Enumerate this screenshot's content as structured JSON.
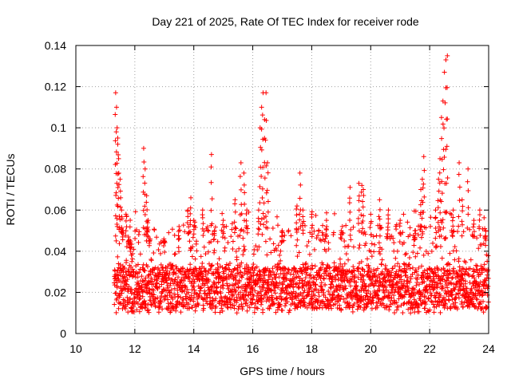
{
  "chart_data": {
    "type": "scatter",
    "title": "Day 221 of 2025, Rate Of TEC Index for receiver rode",
    "xlabel": "GPS time / hours",
    "ylabel": "ROTI / TECUs",
    "xlim": [
      10,
      24
    ],
    "ylim": [
      0,
      0.14
    ],
    "xticks": [
      10,
      12,
      14,
      16,
      18,
      20,
      22,
      24
    ],
    "yticks": [
      0,
      0.02,
      0.04,
      0.06,
      0.08,
      0.1,
      0.12,
      0.14
    ],
    "xtick_labels": [
      "10",
      "12",
      "14",
      "16",
      "18",
      "20",
      "22",
      "24"
    ],
    "ytick_labels": [
      "0",
      "0.02",
      "0.04",
      "0.06",
      "0.08",
      "0.1",
      "0.12",
      "0.14"
    ],
    "grid": true,
    "marker": "+",
    "series_color": "#ff0000",
    "series": [
      {
        "name": "ROTI",
        "x": [
          11.35,
          11.38,
          11.4,
          11.42,
          11.45,
          11.5,
          11.55,
          11.6,
          11.7,
          11.8,
          11.85,
          11.9,
          12.3,
          12.35,
          12.4,
          12.45,
          12.5,
          13.0,
          13.5,
          13.8,
          13.9,
          14.0,
          14.3,
          14.6,
          14.7,
          15.0,
          15.4,
          15.6,
          15.7,
          15.8,
          16.2,
          16.25,
          16.3,
          16.35,
          16.4,
          16.45,
          16.5,
          17.0,
          17.5,
          17.6,
          17.7,
          18.0,
          18.5,
          19.0,
          19.3,
          19.6,
          19.7,
          19.75,
          20.0,
          20.3,
          20.6,
          21.0,
          21.5,
          21.7,
          21.75,
          21.8,
          22.2,
          22.3,
          22.35,
          22.4,
          22.45,
          22.5,
          22.55,
          22.6,
          22.8,
          23.0,
          23.1,
          23.3,
          23.5,
          23.7,
          23.9
        ],
        "y": [
          0.117,
          0.11,
          0.1,
          0.095,
          0.085,
          0.075,
          0.06,
          0.05,
          0.058,
          0.045,
          0.04,
          0.035,
          0.09,
          0.08,
          0.067,
          0.055,
          0.045,
          0.045,
          0.052,
          0.06,
          0.066,
          0.055,
          0.06,
          0.087,
          0.05,
          0.055,
          0.065,
          0.083,
          0.078,
          0.06,
          0.06,
          0.1,
          0.11,
          0.117,
          0.104,
          0.117,
          0.083,
          0.05,
          0.062,
          0.078,
          0.06,
          0.058,
          0.055,
          0.05,
          0.071,
          0.073,
          0.072,
          0.07,
          0.058,
          0.065,
          0.06,
          0.055,
          0.05,
          0.07,
          0.075,
          0.086,
          0.06,
          0.075,
          0.085,
          0.105,
          0.113,
          0.127,
          0.133,
          0.135,
          0.06,
          0.083,
          0.065,
          0.08,
          0.055,
          0.06,
          0.05
        ],
        "band": {
          "x_range": [
            11.3,
            24.0
          ],
          "typical_range": [
            0.01,
            0.045
          ],
          "median": 0.022
        }
      }
    ]
  }
}
